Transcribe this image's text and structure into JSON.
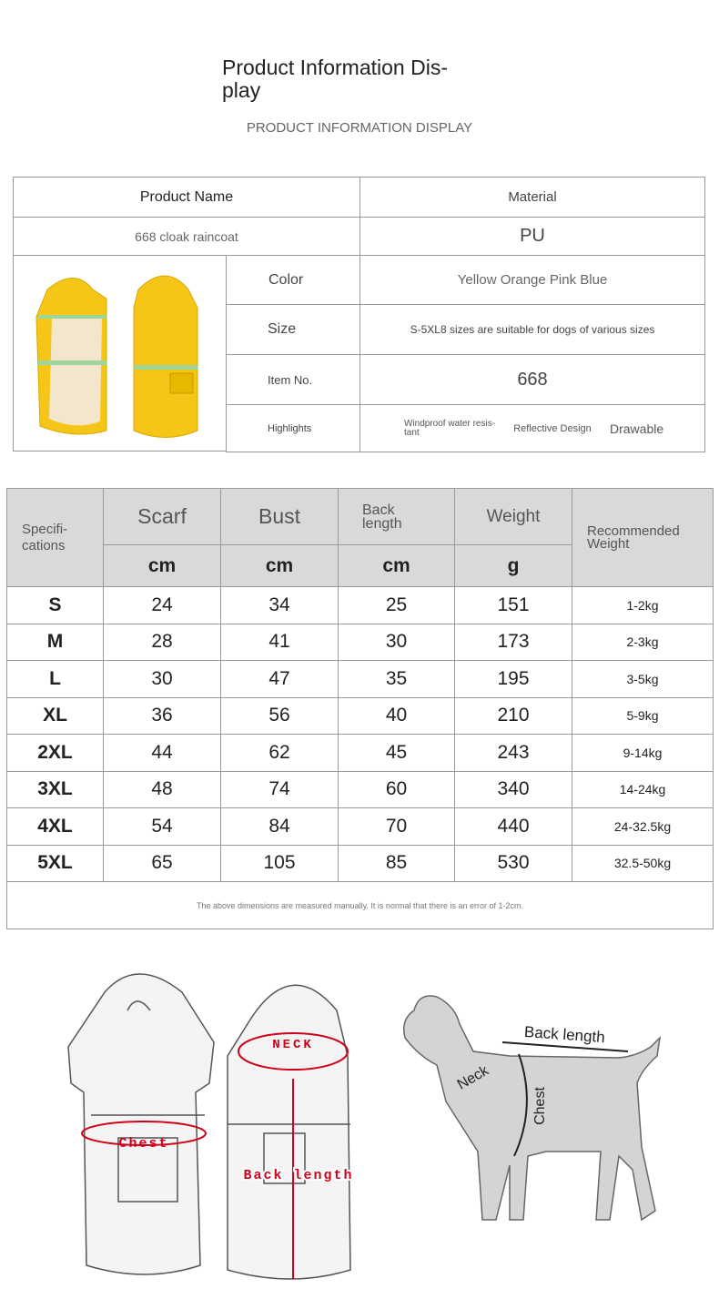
{
  "header": {
    "title": "Product Information Dis-\nplay",
    "subtitle": "PRODUCT INFORMATION DISPLAY"
  },
  "info": {
    "product_name_label": "Product Name",
    "material_label": "Material",
    "product_name": "668 cloak raincoat",
    "material": "PU",
    "color_label": "Color",
    "color": "Yellow Orange Pink Blue",
    "size_label": "Size",
    "size": "S-5XL8 sizes are suitable for dogs of various sizes",
    "item_label": "Item No.",
    "item": "668",
    "highlights_label": "Highlights",
    "highlights": [
      "Windproof water resis-\ntant",
      "Reflective Design",
      "Drawable"
    ]
  },
  "sizes": {
    "headers": {
      "spec": "Specifi-\ncations",
      "scarf": "Scarf",
      "bust": "Bust",
      "back": "Back\nlength",
      "weight": "Weight",
      "rec": "Recommended\nWeight"
    },
    "units": [
      "cm",
      "cm",
      "cm",
      "g"
    ],
    "rows": [
      [
        "S",
        "24",
        "34",
        "25",
        "151",
        "1-2kg"
      ],
      [
        "M",
        "28",
        "41",
        "30",
        "173",
        "2-3kg"
      ],
      [
        "L",
        "30",
        "47",
        "35",
        "195",
        "3-5kg"
      ],
      [
        "XL",
        "36",
        "56",
        "40",
        "210",
        "5-9kg"
      ],
      [
        "2XL",
        "44",
        "62",
        "45",
        "243",
        "9-14kg"
      ],
      [
        "3XL",
        "48",
        "74",
        "60",
        "340",
        "14-24kg"
      ],
      [
        "4XL",
        "54",
        "84",
        "70",
        "440",
        "24-32.5kg"
      ],
      [
        "5XL",
        "65",
        "105",
        "85",
        "530",
        "32.5-50kg"
      ]
    ],
    "note": "The above dimensions are measured manually. It is normal that there is an error of 1-2cm."
  },
  "diagram": {
    "neck": "NECK",
    "chest": "Chest",
    "back_length": "Back length",
    "dog_back": "Back length",
    "dog_neck": "Neck",
    "dog_chest": "Chest"
  },
  "colors": {
    "raincoat": "#f5c518",
    "header_bg": "#d9d9d9",
    "measure_red": "#d0021b",
    "dog_gray": "#d4d4d4"
  }
}
